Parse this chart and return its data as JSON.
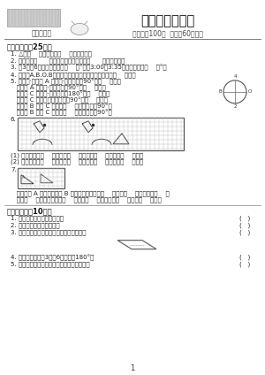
{
  "title": "第一单元测评卷",
  "subtitle_left": "（苏教版）",
  "subtitle_right": "（满分：100分  时间：60分钟）",
  "bg_color": "#ffffff",
  "section1_title": "一、填空。（25分）",
  "section2_title": "二、判断。（10分）",
  "q1": "1. △是（    ）图形，有（    ）条对称轴。",
  "q2": "2. 正方形有（      ）条对称轴，长方形有（      ）条对称轴。",
  "q3": "3. 从3时到6时，时针旋转了（    ）°，从3:00到3:35，分针旋转了（    ）°。",
  "q4": "4. 数字轴A.B.O.B上在中，是顺时针旋转得到的字母有（    ）个。",
  "q5_0": "5. 如图圆·指针从 A 点开始·顺时针旋转90°到（    ）点；",
  "q5_1": "   指针从 A 点开始·逆时针旋转90°到（    ）点；",
  "q5_2": "   指针从 C 点开始·顺时针旋转180°到（    ）点；",
  "q5_3": "   指针从 C 点开始，逆时针旋转90°到（    ）点；",
  "q5_4": "   指针从 B 点到 C 点，是（    ）时针旋转亇90°；",
  "q5_5": "   指针从 B 点到 C 点，是（    ）时针旋转亇90°。",
  "q6_label": "6.",
  "q6_1": "(1) 小岛形先向（    ）平移了（    ）格，向（    ）平移了（    ）格。",
  "q6_2": "(2) 三角形先向（    ）平移了（    ）格，向（    ）平移了（    ）格。",
  "q7_label": "7.",
  "q7_1": "   三角形从 A 平移到三角形 B 的位置，可以先向（    ）平移（    ）格，再向（    ）",
  "q7_2": "   平移（    ）格；或者先向（    ）平移（    ）格，再向（    ）平移（    ）格。",
  "j1": "1. 平等「平」有一条对称轴。",
  "j2": "2. 图形也和的运动是平移。",
  "j3": "3. 如下图，这个平行四边形有四条对称轴。",
  "j4": "4. 钟图上指针作从3走到6，旋转了180°。",
  "j5": "5. 汉字「田」「日」「雷」都是轴对称图形。",
  "compass_labels": [
    "4",
    "O",
    "2",
    "B"
  ],
  "page_num": "1"
}
